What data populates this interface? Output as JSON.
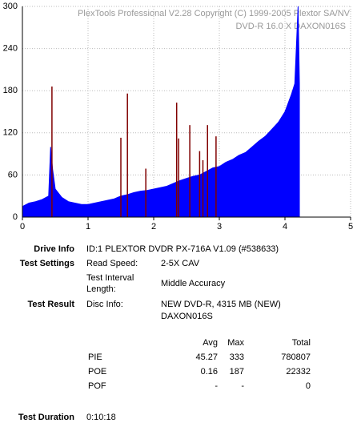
{
  "chart_data": {
    "type": "area",
    "title": "PlexTools Professional V2.28 Copyright (C) 1999-2005 Plextor SA/NV",
    "subtitle": "DVD-R   16.0 X   DAXON016S",
    "xlim": [
      0,
      5
    ],
    "xticks": [
      0,
      1,
      2,
      3,
      4,
      5
    ],
    "ylim": [
      0,
      300
    ],
    "yticks": [
      0,
      60,
      120,
      180,
      240,
      300
    ],
    "grid": true,
    "series": [
      {
        "type": "area",
        "color": "#0000ff",
        "x": [
          0.0,
          0.1,
          0.2,
          0.3,
          0.4,
          0.43,
          0.46,
          0.5,
          0.6,
          0.7,
          0.8,
          0.9,
          1.0,
          1.1,
          1.2,
          1.3,
          1.4,
          1.5,
          1.6,
          1.7,
          1.8,
          1.9,
          2.0,
          2.1,
          2.2,
          2.3,
          2.4,
          2.5,
          2.6,
          2.7,
          2.8,
          2.9,
          3.0,
          3.1,
          3.2,
          3.3,
          3.4,
          3.5,
          3.6,
          3.7,
          3.8,
          3.9,
          4.0,
          4.1,
          4.15,
          4.2,
          4.22
        ],
        "values": [
          15,
          20,
          22,
          25,
          30,
          100,
          68,
          40,
          28,
          22,
          20,
          18,
          18,
          20,
          22,
          24,
          26,
          30,
          32,
          35,
          37,
          38,
          40,
          42,
          44,
          48,
          52,
          55,
          58,
          60,
          65,
          70,
          72,
          78,
          82,
          88,
          92,
          100,
          108,
          115,
          125,
          135,
          150,
          175,
          190,
          300,
          190
        ]
      },
      {
        "type": "spikes",
        "color": "#800000",
        "x": [
          0.45,
          1.5,
          1.6,
          1.88,
          2.35,
          2.38,
          2.55,
          2.7,
          2.75,
          2.82,
          2.95
        ],
        "values": [
          186,
          113,
          176,
          69,
          163,
          112,
          131,
          94,
          81,
          131,
          115
        ]
      }
    ]
  },
  "report": {
    "drive_info_label": "Drive Info",
    "drive_info": "ID:1 PLEXTOR DVDR PX-716A V1.09 (#538633)",
    "test_settings_label": "Test Settings",
    "read_speed_label": "Read Speed:",
    "read_speed": "2-5X CAV",
    "interval_label_1": "Test Interval",
    "interval_label_2": "Length:",
    "interval": "Middle Accuracy",
    "test_result_label": "Test Result",
    "disc_info_label": "Disc Info:",
    "disc_info_1": "NEW DVD-R, 4315 MB (NEW)",
    "disc_info_2": "DAXON016S",
    "stats_header": [
      "Avg",
      "Max",
      "Total"
    ],
    "stats_rows": [
      [
        "PIE",
        "45.27",
        "333",
        "780807"
      ],
      [
        "POE",
        "0.16",
        "187",
        "22332"
      ],
      [
        "POF",
        "-",
        "-",
        "0"
      ]
    ],
    "duration_label": "Test Duration",
    "duration": "0:10:18"
  }
}
